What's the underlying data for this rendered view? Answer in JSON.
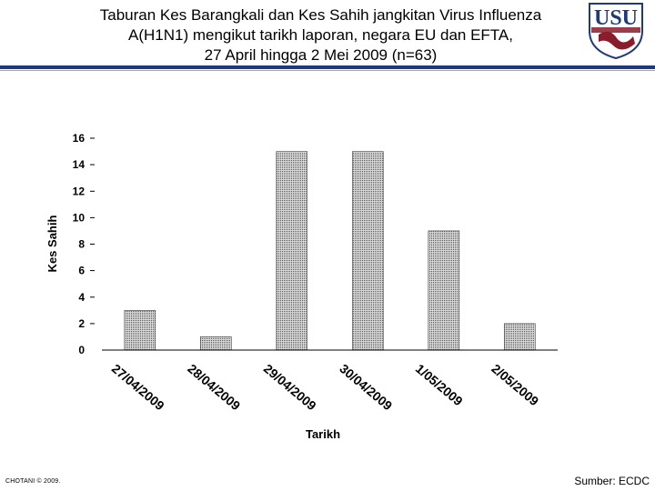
{
  "header": {
    "title_lines": [
      "Taburan Kes Barangkali dan Kes Sahih jangkitan Virus Influenza",
      "A(H1N1) mengikut tarikh laporan, negara EU dan EFTA,",
      "27 April hingga 2 Mei 2009 (n=63)"
    ],
    "logo_text": "USU",
    "colors": {
      "rule": "#1f3a7a",
      "logo": "#1f3a7a",
      "logo_accent": "#8a1c2b"
    }
  },
  "chart_data": {
    "type": "bar",
    "categories": [
      "27/04/2009",
      "28/04/2009",
      "29/04/2009",
      "30/04/2009",
      "1/05/2009",
      "2/05/2009"
    ],
    "values": [
      3,
      1,
      15,
      15,
      9,
      2
    ],
    "xlabel": "Tarikh",
    "ylabel": "Kes Sahih",
    "ylim": [
      0,
      16
    ],
    "yticks": [
      0,
      2,
      4,
      6,
      8,
      10,
      12,
      14,
      16
    ],
    "grid": false,
    "legend": "none",
    "bar_fill": "#cfcfcf",
    "bar_pattern_color": "#555555"
  },
  "footer": {
    "left": "CHOTANI © 2009.",
    "right": "Sumber: ECDC"
  }
}
